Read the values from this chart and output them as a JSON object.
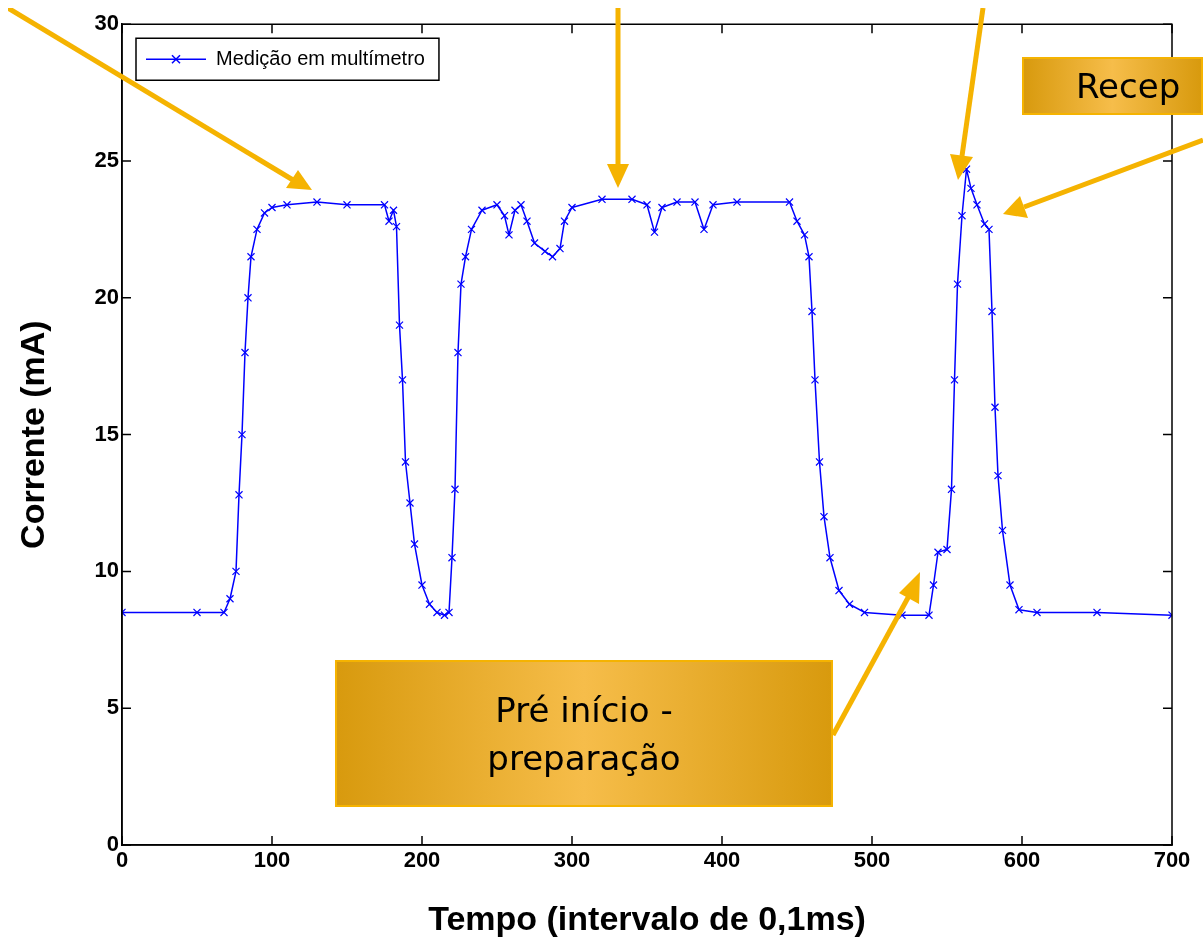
{
  "chart_data": {
    "type": "line",
    "xlabel": "Tempo (intervalo de 0,1ms)",
    "ylabel": "Corrente (mA)",
    "xlim": [
      0,
      700
    ],
    "xticks": [
      0,
      100,
      200,
      300,
      400,
      500,
      600,
      700
    ],
    "ylim": [
      0,
      30
    ],
    "yticks": [
      0,
      5,
      10,
      15,
      20,
      25,
      30
    ],
    "grid": false,
    "legend": "top left",
    "marker": "cross",
    "line_style": "solid",
    "series": [
      {
        "name": "Medição em multímetro",
        "color": "#0000ff",
        "x": [
          0,
          50,
          68,
          72,
          76,
          78,
          80,
          82,
          84,
          86,
          90,
          95,
          100,
          110,
          130,
          150,
          175,
          178,
          181,
          183,
          185,
          187,
          189,
          192,
          195,
          200,
          205,
          210,
          215,
          218,
          220,
          222,
          224,
          226,
          229,
          233,
          240,
          250,
          255,
          258,
          262,
          266,
          270,
          275,
          282,
          287,
          292,
          295,
          300,
          320,
          340,
          350,
          355,
          360,
          370,
          382,
          388,
          394,
          410,
          445,
          450,
          455,
          458,
          460,
          462,
          465,
          468,
          472,
          478,
          485,
          495,
          520,
          538,
          541,
          544,
          550,
          553,
          555,
          557,
          560,
          563,
          566,
          570,
          575,
          578,
          580,
          582,
          584,
          587,
          592,
          598,
          610,
          650,
          700
        ],
        "values": [
          8.5,
          8.5,
          8.5,
          9,
          10,
          12.8,
          15,
          18,
          20,
          21.5,
          22.5,
          23.1,
          23.3,
          23.4,
          23.5,
          23.4,
          23.4,
          22.8,
          23.2,
          22.6,
          19,
          17,
          14,
          12.5,
          11,
          9.5,
          8.8,
          8.5,
          8.4,
          8.5,
          10.5,
          13,
          18,
          20.5,
          21.5,
          22.5,
          23.2,
          23.4,
          23,
          22.3,
          23.2,
          23.4,
          22.8,
          22,
          21.7,
          21.5,
          21.8,
          22.8,
          23.3,
          23.6,
          23.6,
          23.4,
          22.4,
          23.3,
          23.5,
          23.5,
          22.5,
          23.4,
          23.5,
          23.5,
          22.8,
          22.3,
          21.5,
          19.5,
          17,
          14,
          12,
          10.5,
          9.3,
          8.8,
          8.5,
          8.4,
          8.4,
          9.5,
          10.7,
          10.8,
          13,
          17,
          20.5,
          23,
          24.7,
          24,
          23.4,
          22.7,
          22.5,
          19.5,
          16,
          13.5,
          11.5,
          9.5,
          8.6,
          8.5,
          8.5,
          8.4
        ]
      }
    ],
    "annotations": [
      "Pré início - preparação",
      "Recep"
    ]
  }
}
